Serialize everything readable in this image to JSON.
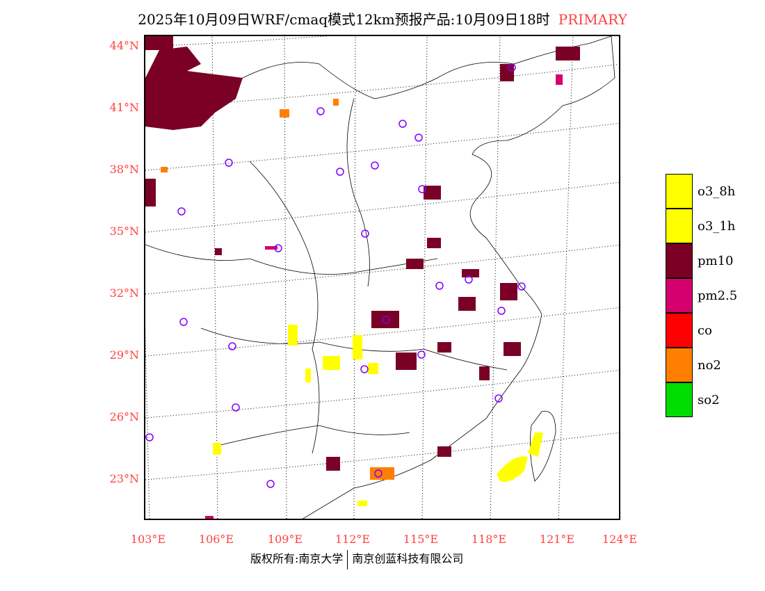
{
  "title": {
    "main": "2025年10月09日WRF/cmaq模式12km预报产品:10月09日18时",
    "tag": "PRIMARY"
  },
  "lat_labels": [
    "44°N",
    "41°N",
    "38°N",
    "35°N",
    "32°N",
    "29°N",
    "26°N",
    "23°N"
  ],
  "lon_labels": [
    "103°E",
    "106°E",
    "109°E",
    "112°E",
    "115°E",
    "118°E",
    "121°E",
    "124°E"
  ],
  "footer": {
    "left": "版权所有:南京大学",
    "right": "南京创蓝科技有限公司"
  },
  "legend": [
    {
      "label": "o3_8h",
      "color": "#ffff00"
    },
    {
      "label": "o3_1h",
      "color": "#ffff00"
    },
    {
      "label": "pm10",
      "color": "#7a0025"
    },
    {
      "label": "pm2.5",
      "color": "#d4006e"
    },
    {
      "label": "co",
      "color": "#ff0000"
    },
    {
      "label": "no2",
      "color": "#ff7f00"
    },
    {
      "label": "so2",
      "color": "#00dd00"
    }
  ]
}
